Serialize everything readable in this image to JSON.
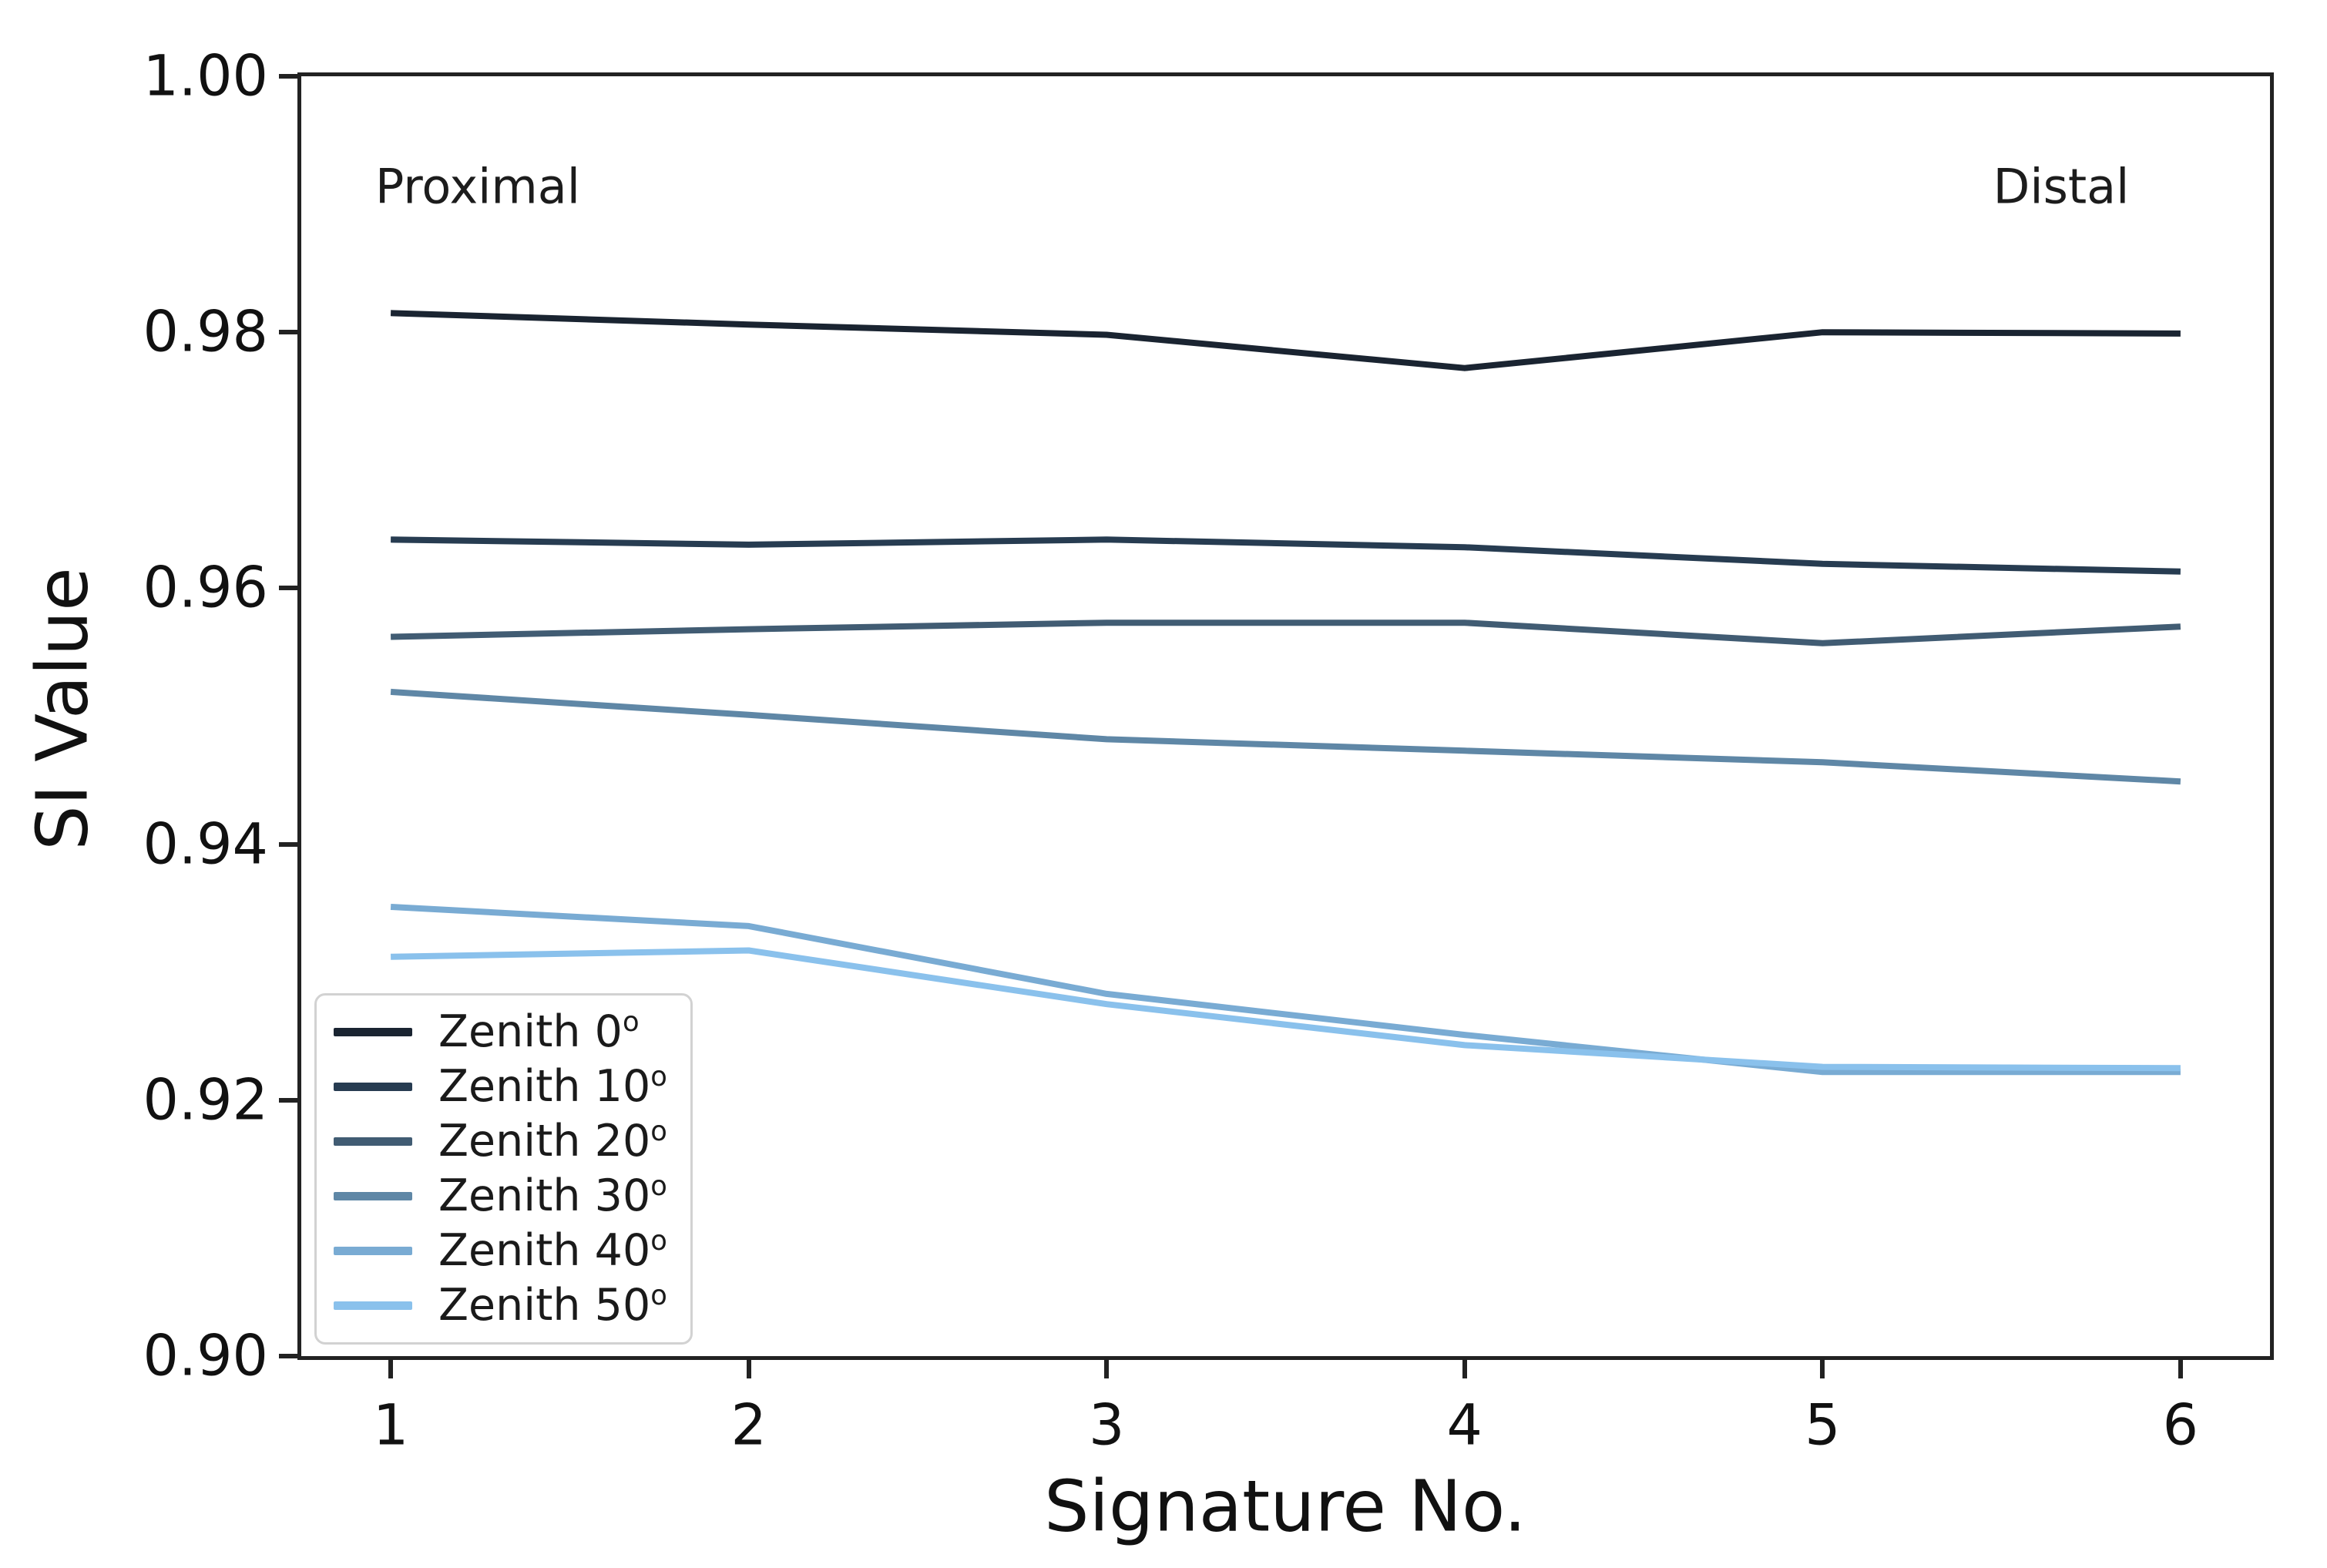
{
  "figure": {
    "background": "#ffffff",
    "spine_color": "#222222",
    "text_color": "#111111"
  },
  "chart_data": {
    "type": "line",
    "title": "",
    "xlabel": "Signature No.",
    "ylabel": "SI Value",
    "x": [
      1,
      2,
      3,
      4,
      5,
      6
    ],
    "xlim": [
      0.75,
      6.25
    ],
    "ylim": [
      0.9,
      1.0
    ],
    "grid": false,
    "xtick_labels": [
      "1",
      "2",
      "3",
      "4",
      "5",
      "6"
    ],
    "xtick_values": [
      1,
      2,
      3,
      4,
      5,
      6
    ],
    "ytick_labels": [
      "1.00",
      "0.98",
      "0.96",
      "0.94",
      "0.92",
      "0.90"
    ],
    "ytick_values": [
      1.0,
      0.98,
      0.96,
      0.94,
      0.92,
      0.9
    ],
    "series": [
      {
        "name": "Zenith 0",
        "color": "#1a2431",
        "values": [
          0.9815,
          0.9806,
          0.9798,
          0.9772,
          0.98,
          0.9799
        ]
      },
      {
        "name": "Zenith 10",
        "color": "#273c51",
        "values": [
          0.9638,
          0.9634,
          0.9638,
          0.9632,
          0.9619,
          0.9613
        ]
      },
      {
        "name": "Zenith 20",
        "color": "#415c73",
        "values": [
          0.9562,
          0.9568,
          0.9573,
          0.9573,
          0.9557,
          0.957
        ]
      },
      {
        "name": "Zenith 30",
        "color": "#5f87a6",
        "values": [
          0.9519,
          0.9501,
          0.9482,
          0.9473,
          0.9464,
          0.9449
        ]
      },
      {
        "name": "Zenith 40",
        "color": "#79abd3",
        "values": [
          0.9351,
          0.9336,
          0.9283,
          0.9251,
          0.9222,
          0.9222
        ]
      },
      {
        "name": "Zenith 50",
        "color": "#8ac1ec",
        "values": [
          0.9312,
          0.9317,
          0.9275,
          0.9243,
          0.9226,
          0.9225
        ]
      }
    ],
    "legend": {
      "position": "lower left",
      "degree_suffix": "o"
    },
    "annotations": [
      {
        "text": "Proximal",
        "position": "top-left"
      },
      {
        "text": "Distal",
        "position": "top-right"
      }
    ]
  }
}
